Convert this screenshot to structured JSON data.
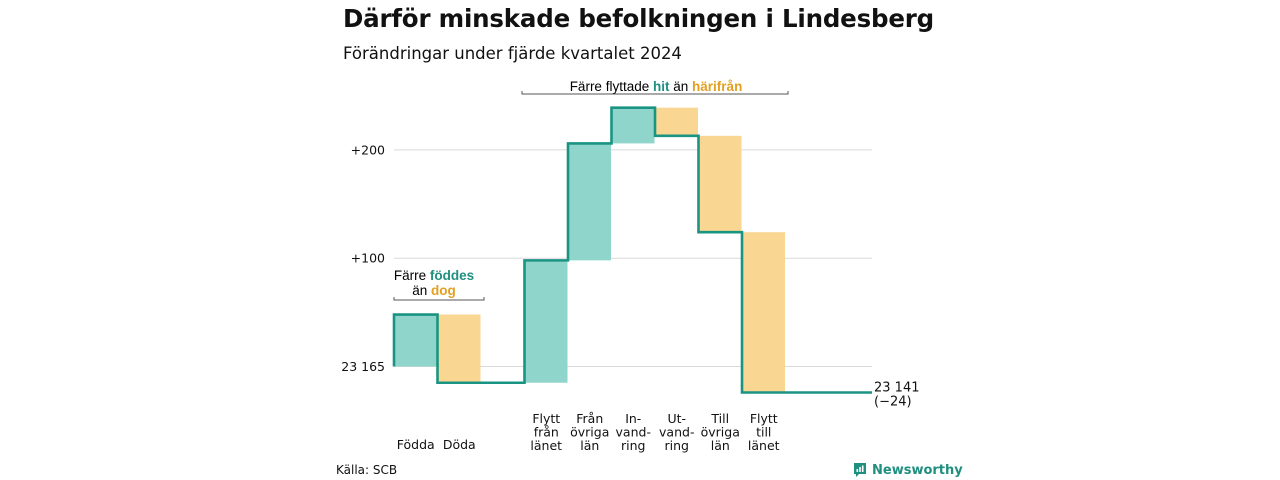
{
  "header": {
    "title": "Därför minskade befolkningen i Lindesberg",
    "subtitle": "Förändringar under fjärde kvartalet 2024"
  },
  "footer": {
    "source": "Källa: SCB",
    "brand": "Newsworthy"
  },
  "colors": {
    "increase": "#8fd5cb",
    "decrease": "#f9d692",
    "line": "#1a9482",
    "teal_text": "#1f8f80",
    "orange_text": "#e39f1f",
    "grid": "#d9d9d9"
  },
  "annotations": {
    "births_deaths": {
      "line1_prefix": "Färre",
      "line1_highlight": "föddes",
      "line2_prefix": "än",
      "line2_highlight": "dog"
    },
    "migration": {
      "prefix": "Färre flyttade",
      "highlight1": "hit",
      "middle": "än",
      "highlight2": "härifrån"
    }
  },
  "chart_data": {
    "type": "waterfall",
    "title": "Därför minskade befolkningen i Lindesberg",
    "subtitle": "Förändringar under fjärde kvartalet 2024",
    "start_value": 23165,
    "start_label": "23 165",
    "end_value": 23141,
    "end_label": "23 141",
    "end_change_label": "(−24)",
    "y_ticks": [
      {
        "offset": 0,
        "label": "23 165"
      },
      {
        "offset": 100,
        "label": "+100"
      },
      {
        "offset": 200,
        "label": "+200"
      }
    ],
    "grid": true,
    "categories": [
      {
        "label": [
          "Födda"
        ],
        "change": 48
      },
      {
        "label": [
          "Döda"
        ],
        "change": -63
      },
      {
        "label": [
          ""
        ],
        "change": 0
      },
      {
        "label": [
          "Flytt",
          "från",
          "länet"
        ],
        "change": 113
      },
      {
        "label": [
          "Från",
          "övriga",
          "län"
        ],
        "change": 108
      },
      {
        "label": [
          "In-",
          "vand-",
          "ring"
        ],
        "change": 33
      },
      {
        "label": [
          "Ut-",
          "vand-",
          "ring"
        ],
        "change": -26
      },
      {
        "label": [
          "Till",
          "övriga",
          "län"
        ],
        "change": -89
      },
      {
        "label": [
          "Flytt",
          "till",
          "länet"
        ],
        "change": -148
      }
    ]
  }
}
